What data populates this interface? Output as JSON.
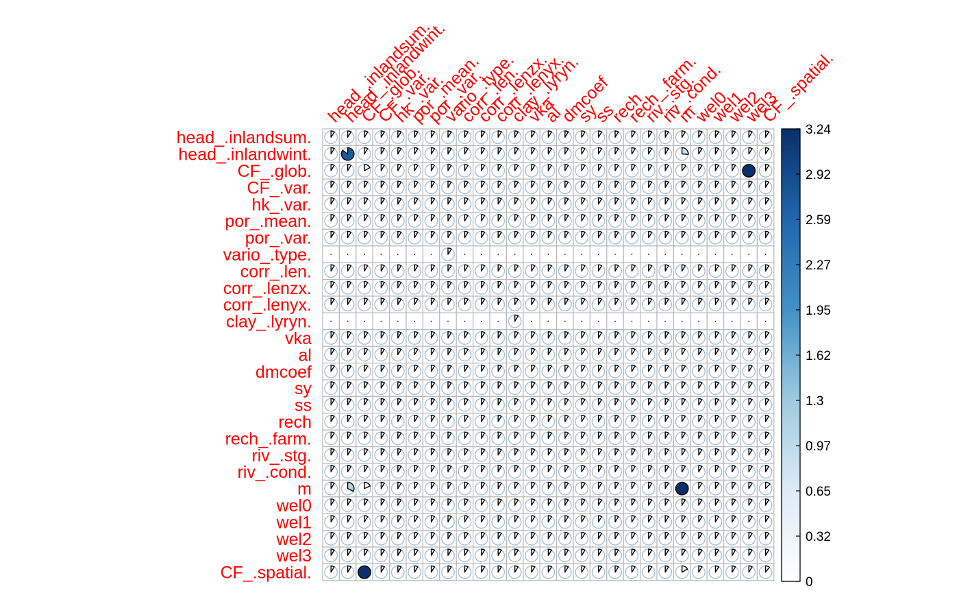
{
  "chart_data": {
    "type": "heatmap",
    "title": "",
    "variables": [
      "head_.inlandsum.",
      "head_.inlandwint.",
      "CF_.glob.",
      "CF_.var.",
      "hk_.var.",
      "por_.mean.",
      "por_.var.",
      "vario_.type.",
      "corr_.len.",
      "corr_.lenzx.",
      "corr_.lenyx.",
      "clay_.lyryn.",
      "vka",
      "al",
      "dmcoef",
      "sy",
      "ss",
      "rech",
      "rech_.farm.",
      "riv_.stg.",
      "riv_.cond.",
      "m",
      "wel0",
      "wel1",
      "wel2",
      "wel3",
      "CF_.spatial."
    ],
    "scale_min": 0,
    "scale_max": 3.24,
    "default_value": 0.08,
    "empty_rows": [
      7,
      11
    ],
    "empty_value": 0.02,
    "highlighted_cells": [
      {
        "row": 1,
        "col": 1,
        "value": 2.75
      },
      {
        "row": 2,
        "col": 2,
        "value": 0.55
      },
      {
        "row": 2,
        "col": 25,
        "value": 3.24
      },
      {
        "row": 1,
        "col": 21,
        "value": 0.85
      },
      {
        "row": 2,
        "col": 21,
        "value": 0.35
      },
      {
        "row": 21,
        "col": 21,
        "value": 3.24
      },
      {
        "row": 21,
        "col": 1,
        "value": 1.05
      },
      {
        "row": 21,
        "col": 2,
        "value": 0.6
      },
      {
        "row": 21,
        "col": 26,
        "value": 0.4
      },
      {
        "row": 26,
        "col": 2,
        "value": 3.24
      },
      {
        "row": 26,
        "col": 21,
        "value": 0.55
      },
      {
        "row": 26,
        "col": 26,
        "value": 0.35
      },
      {
        "row": 0,
        "col": 0,
        "value": 0.3
      },
      {
        "row": 7,
        "col": 7,
        "value": 0.3
      },
      {
        "row": 11,
        "col": 11,
        "value": 0.2
      },
      {
        "row": 3,
        "col": 26,
        "value": 0.25
      },
      {
        "row": 2,
        "col": 0,
        "value": 0.2
      }
    ],
    "colorbar": {
      "ticks": [
        "3.24",
        "2.92",
        "2.59",
        "2.27",
        "1.95",
        "1.62",
        "1.3",
        "0.97",
        "0.65",
        "0.32",
        "0"
      ],
      "colors": [
        "#ffffff",
        "#deebf7",
        "#9ecae1",
        "#4292c6",
        "#2166ac",
        "#08306b"
      ]
    },
    "label_color": "#ff0000",
    "grid_color": "#b8b8b8",
    "circle_outline_color": "#a6bfd0"
  }
}
